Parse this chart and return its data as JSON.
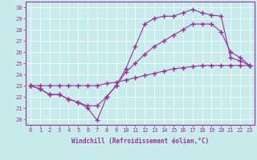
{
  "xlabel": "Windchill (Refroidissement éolien,°C)",
  "bg_color": "#c8ecec",
  "line_color": "#993399",
  "xlim": [
    -0.5,
    23.5
  ],
  "ylim": [
    19.5,
    30.5
  ],
  "xticks": [
    0,
    1,
    2,
    3,
    4,
    5,
    6,
    7,
    8,
    9,
    10,
    11,
    12,
    13,
    14,
    15,
    16,
    17,
    18,
    19,
    20,
    21,
    22,
    23
  ],
  "yticks": [
    20,
    21,
    22,
    23,
    24,
    25,
    26,
    27,
    28,
    29,
    30
  ],
  "line1_x": [
    0,
    1,
    2,
    3,
    4,
    5,
    6,
    7,
    8,
    9,
    10,
    11,
    12,
    13,
    14,
    15,
    16,
    17,
    18,
    19,
    20,
    21,
    22,
    23
  ],
  "line1_y": [
    23.0,
    23.0,
    23.0,
    23.0,
    23.0,
    23.0,
    23.0,
    23.0,
    23.2,
    23.3,
    23.5,
    23.7,
    23.9,
    24.1,
    24.3,
    24.5,
    24.6,
    24.7,
    24.8,
    24.8,
    24.8,
    24.8,
    24.8,
    24.8
  ],
  "line2_x": [
    0,
    1,
    2,
    3,
    4,
    5,
    6,
    7,
    8,
    9,
    10,
    11,
    12,
    13,
    14,
    15,
    16,
    17,
    18,
    19,
    20,
    21,
    22,
    23
  ],
  "line2_y": [
    23.0,
    22.7,
    22.2,
    22.2,
    21.8,
    21.5,
    21.2,
    21.2,
    22.0,
    23.0,
    24.2,
    25.0,
    25.8,
    26.5,
    27.0,
    27.5,
    28.0,
    28.5,
    28.5,
    28.5,
    27.8,
    26.0,
    25.5,
    24.8
  ],
  "line3_x": [
    0,
    1,
    2,
    3,
    4,
    5,
    6,
    7,
    8,
    9,
    10,
    11,
    12,
    13,
    14,
    15,
    16,
    17,
    18,
    19,
    20,
    21,
    22,
    23
  ],
  "line3_y": [
    23.0,
    22.7,
    22.2,
    22.2,
    21.8,
    21.5,
    21.0,
    19.9,
    22.0,
    23.0,
    24.5,
    26.5,
    28.5,
    29.0,
    29.2,
    29.2,
    29.5,
    29.8,
    29.5,
    29.3,
    29.2,
    25.5,
    25.2,
    24.8
  ]
}
